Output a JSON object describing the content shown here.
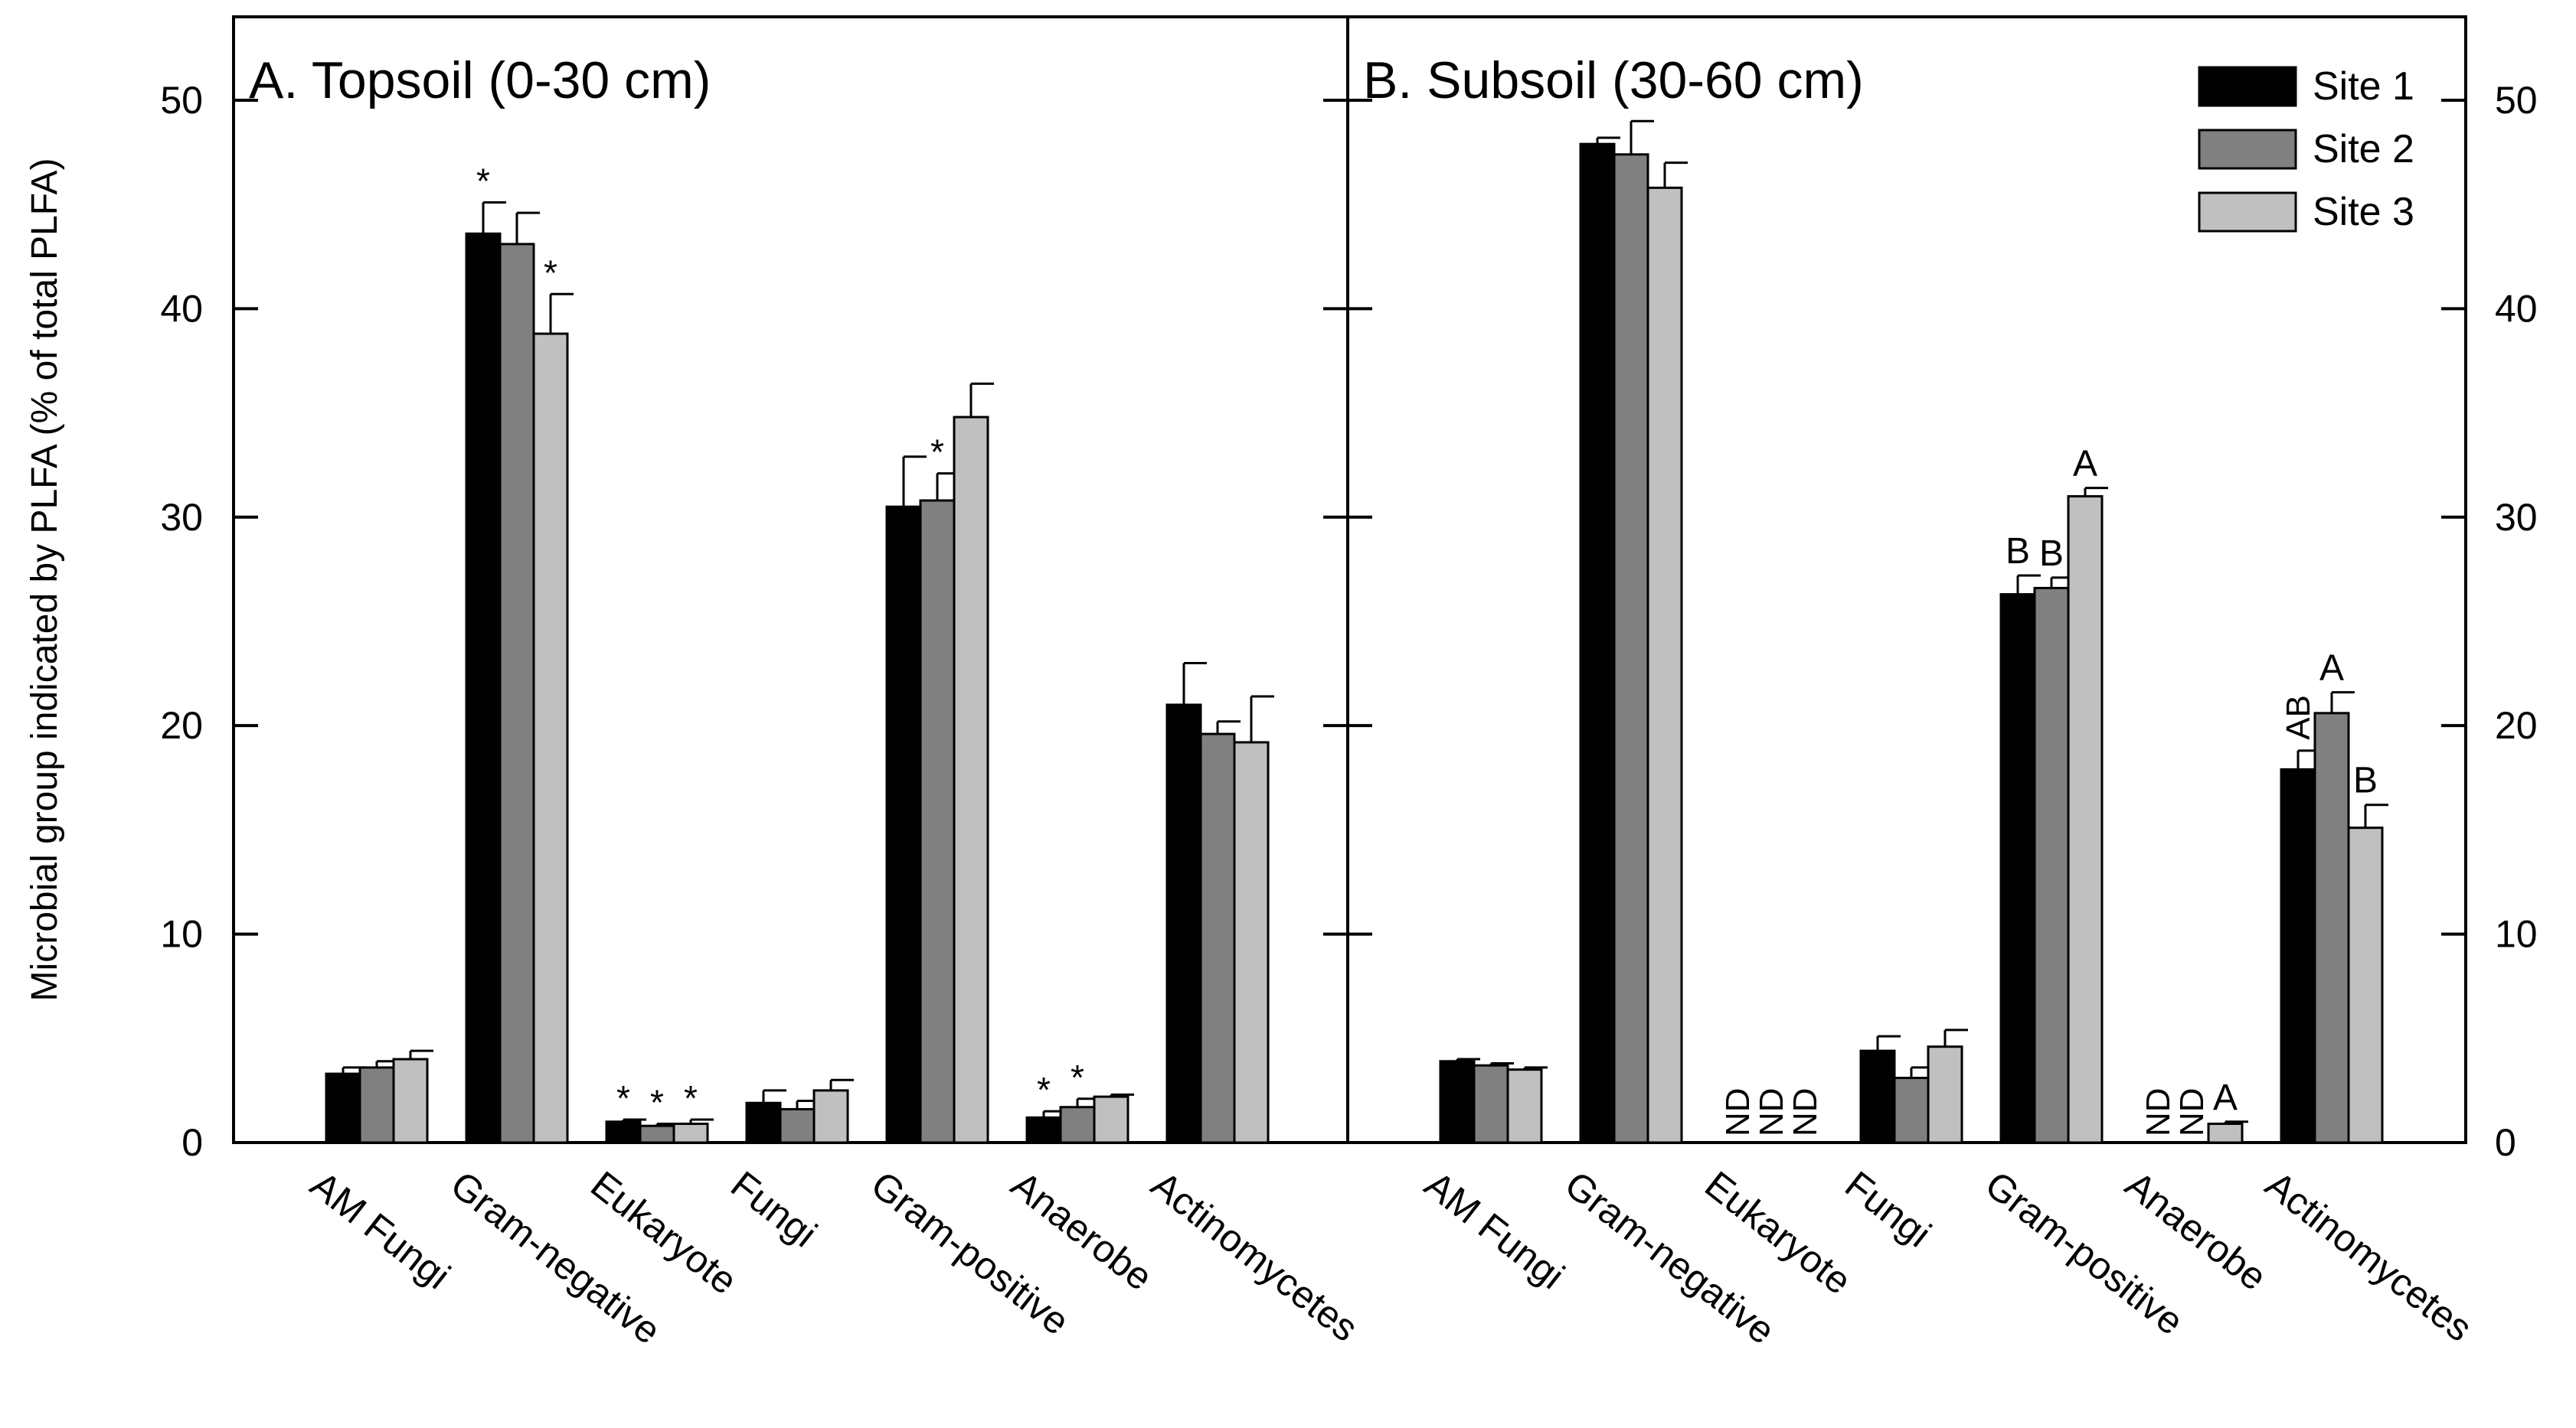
{
  "chart_data": {
    "type": "bar",
    "ylabel": "Microbial group indicated by PLFA (% of total PLFA)",
    "ylim": [
      0,
      54
    ],
    "yticks": [
      0,
      10,
      20,
      30,
      40,
      50
    ],
    "categories": [
      "AM Fungi",
      "Gram-negative",
      "Eukaryote",
      "Fungi",
      "Gram-positive",
      "Anaerobe",
      "Actinomycetes"
    ],
    "legend": {
      "position": "top-right",
      "entries": [
        "Site 1",
        "Site 2",
        "Site 3"
      ],
      "colors": [
        "#000000",
        "#808080",
        "#c0c0c0"
      ]
    },
    "panels": [
      {
        "title": "A. Topsoil (0-30 cm)",
        "series": [
          {
            "name": "Site 1",
            "values": [
              3.3,
              43.6,
              1.0,
              1.9,
              30.5,
              1.2,
              21.0
            ],
            "errors": [
              0.3,
              1.5,
              0.1,
              0.6,
              2.4,
              0.3,
              2.0
            ]
          },
          {
            "name": "Site 2",
            "values": [
              3.6,
              43.1,
              0.8,
              1.6,
              30.8,
              1.7,
              19.6
            ],
            "errors": [
              0.3,
              1.5,
              0.1,
              0.4,
              1.3,
              0.4,
              0.6
            ]
          },
          {
            "name": "Site 3",
            "values": [
              4.0,
              38.8,
              0.9,
              2.5,
              34.8,
              2.2,
              19.2
            ],
            "errors": [
              0.4,
              1.9,
              0.2,
              0.5,
              1.6,
              0.1,
              2.2
            ]
          }
        ],
        "annotations": [
          [
            [
              "",
              "",
              ""
            ],
            [
              "*",
              "",
              "*"
            ],
            [
              "*",
              "*",
              "*"
            ],
            [
              "",
              "",
              ""
            ],
            [
              "",
              "*",
              ""
            ],
            [
              "*",
              "*",
              ""
            ],
            [
              "",
              "",
              ""
            ]
          ]
        ]
      },
      {
        "title": "B. Subsoil (30-60 cm)",
        "series": [
          {
            "name": "Site 1",
            "values": [
              3.9,
              47.9,
              0,
              4.4,
              26.3,
              0,
              17.9
            ],
            "errors": [
              0.1,
              0.3,
              0,
              0.7,
              0.9,
              0,
              0.9
            ]
          },
          {
            "name": "Site 2",
            "values": [
              3.7,
              47.4,
              0,
              3.1,
              26.6,
              0,
              20.6
            ],
            "errors": [
              0.1,
              1.6,
              0,
              0.5,
              0.5,
              0,
              1.0
            ]
          },
          {
            "name": "Site 3",
            "values": [
              3.5,
              45.8,
              0,
              4.6,
              31.0,
              0.9,
              15.1
            ],
            "errors": [
              0.1,
              1.2,
              0,
              0.8,
              0.4,
              0.1,
              1.1
            ]
          }
        ],
        "annotations": [
          [
            [
              "",
              "",
              ""
            ],
            [
              "",
              "",
              ""
            ],
            [
              "ND",
              "ND",
              "ND"
            ],
            [
              "",
              "",
              ""
            ],
            [
              "B",
              "B",
              "A"
            ],
            [
              "ND",
              "ND",
              "A"
            ],
            [
              "AB",
              "A",
              "B"
            ]
          ]
        ]
      }
    ]
  }
}
